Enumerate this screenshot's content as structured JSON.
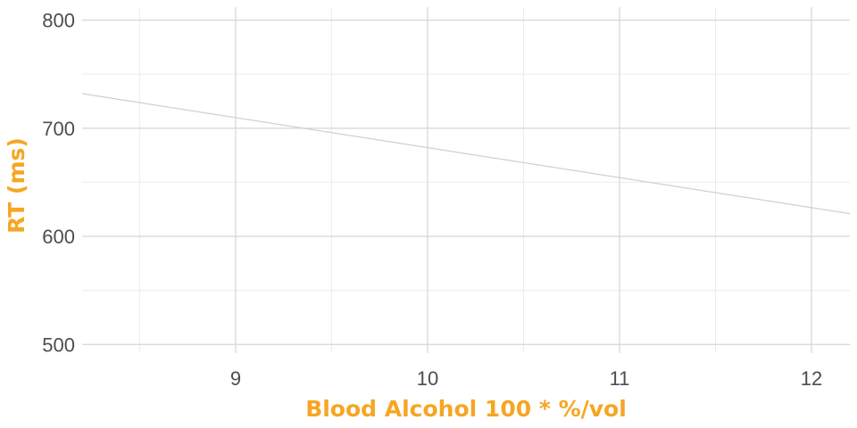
{
  "chart_data": {
    "type": "line",
    "xlabel": "Blood Alcohol 100 * %/vol",
    "ylabel": "RT (ms)",
    "xlim": [
      8.2,
      12.2
    ],
    "ylim": [
      492,
      812
    ],
    "x_ticks": [
      9,
      10,
      11,
      12
    ],
    "x_tick_labels": [
      "9",
      "10",
      "11",
      "12"
    ],
    "x_minor_ticks": [
      8.5,
      9.5,
      10.5,
      11.5
    ],
    "y_ticks": [
      500,
      600,
      700,
      800
    ],
    "y_tick_labels": [
      "500",
      "600",
      "700",
      "800"
    ],
    "y_minor_ticks": [
      550,
      650,
      750
    ],
    "grid": true,
    "series": [
      {
        "x": [
          8.2,
          12.2
        ],
        "y": [
          732,
          621
        ],
        "color": "#d0d0d0"
      }
    ],
    "colors": {
      "title": "#f5a623",
      "grid_major": "#d9d9d9",
      "grid_minor": "#ececec",
      "tick_text": "#4d4d4d"
    }
  }
}
